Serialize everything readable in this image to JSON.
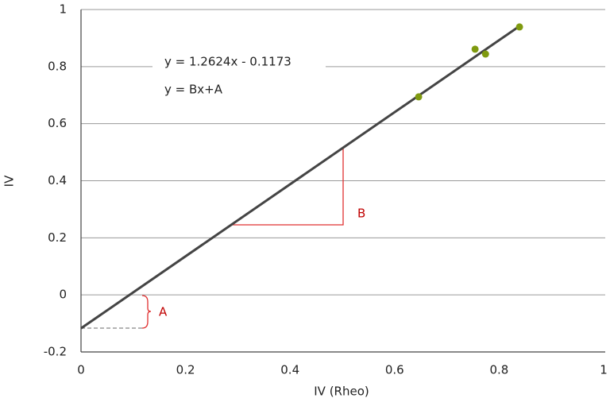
{
  "chart_data": {
    "type": "scatter",
    "xlabel": "IV (Rheo)",
    "ylabel": "IV",
    "xlim": [
      0,
      1
    ],
    "ylim": [
      -0.2,
      1
    ],
    "xticks": [
      0,
      0.2,
      0.4,
      0.6,
      0.8,
      1
    ],
    "yticks": [
      -0.2,
      0,
      0.2,
      0.4,
      0.6,
      0.8,
      1
    ],
    "grid": true,
    "points": {
      "color": "#7f9a0f",
      "x": [
        0.646,
        0.754,
        0.774,
        0.839
      ],
      "y": [
        0.694,
        0.861,
        0.844,
        0.939
      ]
    },
    "fit_line": {
      "color": "#444444",
      "x": [
        0,
        0.836
      ],
      "y": [
        -0.1173,
        0.938
      ]
    },
    "annotations": [
      "y = 1.2624x - 0.1173",
      "y = Bx+A",
      "A",
      "B"
    ]
  }
}
